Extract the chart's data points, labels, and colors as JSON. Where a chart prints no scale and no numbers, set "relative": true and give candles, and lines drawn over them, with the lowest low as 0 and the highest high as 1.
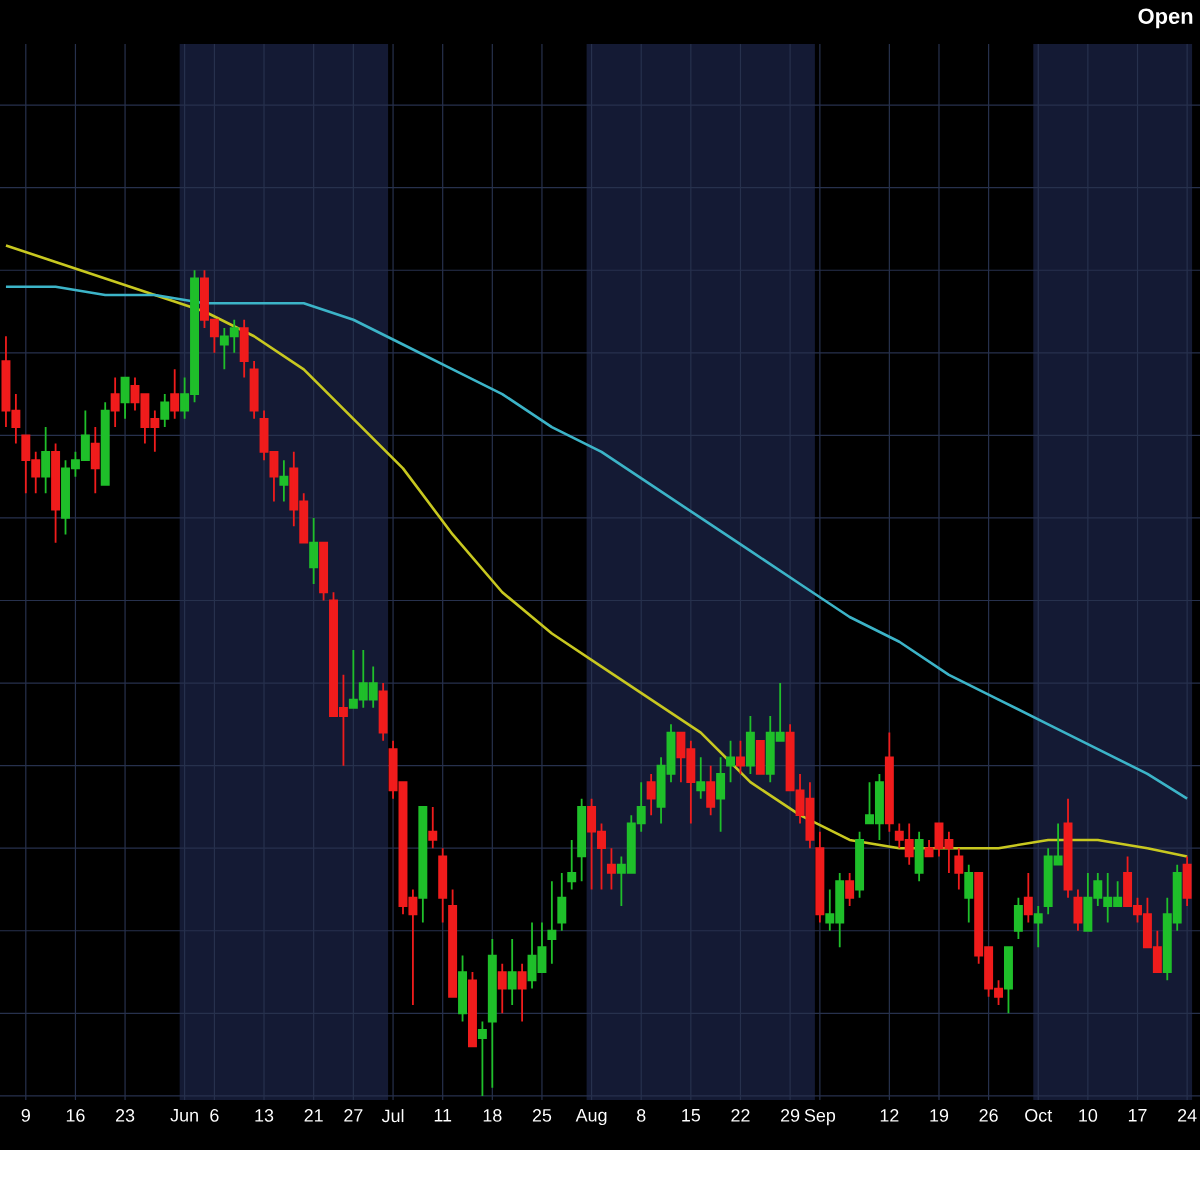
{
  "chart_data": {
    "type": "candlestick",
    "relative": true,
    "grid": true,
    "tick_labels": "x",
    "categories": [
      null,
      null,
      "9",
      null,
      null,
      null,
      null,
      "16",
      null,
      null,
      null,
      null,
      "23",
      null,
      null,
      null,
      null,
      null,
      "Jun",
      null,
      null,
      "6",
      null,
      null,
      null,
      null,
      "13",
      null,
      null,
      null,
      null,
      "21",
      null,
      null,
      null,
      "27",
      null,
      null,
      null,
      "Jul",
      null,
      null,
      null,
      null,
      "11",
      null,
      null,
      null,
      null,
      "18",
      null,
      null,
      null,
      null,
      "25",
      null,
      null,
      null,
      null,
      "Aug",
      null,
      null,
      null,
      null,
      "8",
      null,
      null,
      null,
      null,
      "15",
      null,
      null,
      null,
      null,
      "22",
      null,
      null,
      null,
      null,
      "29",
      null,
      null,
      "Sep",
      null,
      null,
      null,
      null,
      null,
      null,
      "12",
      null,
      null,
      null,
      null,
      "19",
      null,
      null,
      null,
      null,
      "26",
      null,
      null,
      null,
      null,
      "Oct",
      null,
      null,
      null,
      null,
      "10",
      null,
      null,
      null,
      null,
      "17",
      null,
      null,
      null,
      null,
      "24"
    ],
    "ohlc": [
      [
        0.89,
        0.92,
        0.81,
        0.83
      ],
      [
        0.83,
        0.85,
        0.79,
        0.81
      ],
      [
        0.8,
        0.8,
        0.73,
        0.77
      ],
      [
        0.77,
        0.78,
        0.73,
        0.75
      ],
      [
        0.75,
        0.81,
        0.73,
        0.78
      ],
      [
        0.78,
        0.79,
        0.67,
        0.71
      ],
      [
        0.7,
        0.77,
        0.68,
        0.76
      ],
      [
        0.76,
        0.78,
        0.75,
        0.77
      ],
      [
        0.77,
        0.83,
        0.77,
        0.8
      ],
      [
        0.79,
        0.81,
        0.73,
        0.76
      ],
      [
        0.74,
        0.84,
        0.74,
        0.83
      ],
      [
        0.85,
        0.87,
        0.81,
        0.83
      ],
      [
        0.84,
        0.87,
        0.82,
        0.87
      ],
      [
        0.86,
        0.87,
        0.83,
        0.84
      ],
      [
        0.85,
        0.85,
        0.79,
        0.81
      ],
      [
        0.82,
        0.83,
        0.78,
        0.81
      ],
      [
        0.82,
        0.85,
        0.81,
        0.84
      ],
      [
        0.85,
        0.88,
        0.82,
        0.83
      ],
      [
        0.83,
        0.87,
        0.82,
        0.85
      ],
      [
        0.85,
        1,
        0.84,
        0.99
      ],
      [
        0.99,
        1,
        0.93,
        0.94
      ],
      [
        0.94,
        0.94,
        0.9,
        0.92
      ],
      [
        0.91,
        0.93,
        0.88,
        0.92
      ],
      [
        0.92,
        0.94,
        0.9,
        0.93
      ],
      [
        0.93,
        0.94,
        0.87,
        0.89
      ],
      [
        0.88,
        0.89,
        0.82,
        0.83
      ],
      [
        0.82,
        0.83,
        0.77,
        0.78
      ],
      [
        0.78,
        0.78,
        0.72,
        0.75
      ],
      [
        0.74,
        0.77,
        0.72,
        0.75
      ],
      [
        0.76,
        0.78,
        0.69,
        0.71
      ],
      [
        0.72,
        0.73,
        0.67,
        0.67
      ],
      [
        0.64,
        0.7,
        0.62,
        0.67
      ],
      [
        0.67,
        0.67,
        0.6,
        0.61
      ],
      [
        0.6,
        0.61,
        0.46,
        0.46
      ],
      [
        0.47,
        0.51,
        0.4,
        0.46
      ],
      [
        0.47,
        0.54,
        0.47,
        0.48
      ],
      [
        0.48,
        0.54,
        0.47,
        0.5
      ],
      [
        0.48,
        0.52,
        0.47,
        0.5
      ],
      [
        0.49,
        0.5,
        0.43,
        0.44
      ],
      [
        0.42,
        0.43,
        0.36,
        0.37
      ],
      [
        0.38,
        0.38,
        0.22,
        0.23
      ],
      [
        0.24,
        0.25,
        0.11,
        0.22
      ],
      [
        0.24,
        0.35,
        0.21,
        0.35
      ],
      [
        0.32,
        0.35,
        0.3,
        0.31
      ],
      [
        0.29,
        0.3,
        0.21,
        0.24
      ],
      [
        0.23,
        0.25,
        0.12,
        0.12
      ],
      [
        0.1,
        0.17,
        0.09,
        0.15
      ],
      [
        0.14,
        0.15,
        0.06,
        0.06
      ],
      [
        0.07,
        0.09,
        0,
        0.08
      ],
      [
        0.09,
        0.19,
        0.01,
        0.17
      ],
      [
        0.15,
        0.16,
        0.1,
        0.13
      ],
      [
        0.13,
        0.19,
        0.11,
        0.15
      ],
      [
        0.15,
        0.16,
        0.09,
        0.13
      ],
      [
        0.14,
        0.21,
        0.13,
        0.17
      ],
      [
        0.15,
        0.21,
        0.15,
        0.18
      ],
      [
        0.19,
        0.26,
        0.16,
        0.2
      ],
      [
        0.21,
        0.27,
        0.2,
        0.24
      ],
      [
        0.26,
        0.31,
        0.25,
        0.27
      ],
      [
        0.29,
        0.36,
        0.26,
        0.35
      ],
      [
        0.35,
        0.36,
        0.25,
        0.32
      ],
      [
        0.32,
        0.33,
        0.25,
        0.3
      ],
      [
        0.28,
        0.3,
        0.25,
        0.27
      ],
      [
        0.27,
        0.29,
        0.23,
        0.28
      ],
      [
        0.27,
        0.34,
        0.27,
        0.33
      ],
      [
        0.33,
        0.38,
        0.32,
        0.35
      ],
      [
        0.38,
        0.39,
        0.34,
        0.36
      ],
      [
        0.35,
        0.41,
        0.33,
        0.4
      ],
      [
        0.39,
        0.45,
        0.38,
        0.44
      ],
      [
        0.44,
        0.44,
        0.38,
        0.41
      ],
      [
        0.42,
        0.43,
        0.33,
        0.38
      ],
      [
        0.37,
        0.41,
        0.36,
        0.38
      ],
      [
        0.38,
        0.4,
        0.34,
        0.35
      ],
      [
        0.36,
        0.41,
        0.32,
        0.39
      ],
      [
        0.4,
        0.43,
        0.38,
        0.41
      ],
      [
        0.41,
        0.43,
        0.39,
        0.4
      ],
      [
        0.4,
        0.46,
        0.39,
        0.44
      ],
      [
        0.43,
        0.43,
        0.39,
        0.39
      ],
      [
        0.39,
        0.46,
        0.38,
        0.44
      ],
      [
        0.43,
        0.5,
        0.43,
        0.44
      ],
      [
        0.44,
        0.45,
        0.37,
        0.37
      ],
      [
        0.37,
        0.39,
        0.33,
        0.34
      ],
      [
        0.36,
        0.38,
        0.3,
        0.31
      ],
      [
        0.3,
        0.32,
        0.21,
        0.22
      ],
      [
        0.21,
        0.25,
        0.2,
        0.22
      ],
      [
        0.21,
        0.27,
        0.18,
        0.26
      ],
      [
        0.26,
        0.27,
        0.23,
        0.24
      ],
      [
        0.25,
        0.32,
        0.24,
        0.31
      ],
      [
        0.33,
        0.38,
        0.33,
        0.34
      ],
      [
        0.33,
        0.39,
        0.31,
        0.38
      ],
      [
        0.41,
        0.44,
        0.32,
        0.33
      ],
      [
        0.32,
        0.33,
        0.3,
        0.31
      ],
      [
        0.31,
        0.33,
        0.28,
        0.29
      ],
      [
        0.27,
        0.32,
        0.26,
        0.31
      ],
      [
        0.3,
        0.31,
        0.29,
        0.29
      ],
      [
        0.33,
        0.33,
        0.29,
        0.3
      ],
      [
        0.31,
        0.32,
        0.27,
        0.3
      ],
      [
        0.29,
        0.3,
        0.25,
        0.27
      ],
      [
        0.24,
        0.28,
        0.21,
        0.27
      ],
      [
        0.27,
        0.27,
        0.16,
        0.17
      ],
      [
        0.18,
        0.18,
        0.12,
        0.13
      ],
      [
        0.13,
        0.14,
        0.11,
        0.12
      ],
      [
        0.13,
        0.18,
        0.1,
        0.18
      ],
      [
        0.2,
        0.24,
        0.19,
        0.23
      ],
      [
        0.24,
        0.27,
        0.21,
        0.22
      ],
      [
        0.21,
        0.23,
        0.18,
        0.22
      ],
      [
        0.23,
        0.3,
        0.22,
        0.29
      ],
      [
        0.28,
        0.33,
        0.28,
        0.29
      ],
      [
        0.33,
        0.36,
        0.24,
        0.25
      ],
      [
        0.24,
        0.25,
        0.2,
        0.21
      ],
      [
        0.2,
        0.27,
        0.2,
        0.24
      ],
      [
        0.24,
        0.27,
        0.23,
        0.26
      ],
      [
        0.23,
        0.27,
        0.21,
        0.24
      ],
      [
        0.23,
        0.26,
        0.23,
        0.24
      ],
      [
        0.27,
        0.29,
        0.23,
        0.23
      ],
      [
        0.23,
        0.24,
        0.21,
        0.22
      ],
      [
        0.22,
        0.24,
        0.18,
        0.18
      ],
      [
        0.18,
        0.2,
        0.15,
        0.15
      ],
      [
        0.15,
        0.24,
        0.14,
        0.22
      ],
      [
        0.21,
        0.28,
        0.2,
        0.27
      ],
      [
        0.28,
        0.29,
        0.23,
        0.24
      ]
    ],
    "colors": [
      "#f01c1c",
      "#f01c1c",
      "#f01c1c",
      "#f01c1c",
      "#1fbf2a",
      "#f01c1c",
      "#1fbf2a",
      "#1fbf2a",
      "#1fbf2a",
      "#f01c1c",
      "#1fbf2a",
      "#f01c1c",
      "#1fbf2a",
      "#f01c1c",
      "#f01c1c",
      "#f01c1c",
      "#1fbf2a",
      "#f01c1c",
      "#1fbf2a",
      "#1fbf2a",
      "#f01c1c",
      "#f01c1c",
      "#1fbf2a",
      "#1fbf2a",
      "#f01c1c",
      "#f01c1c",
      "#f01c1c",
      "#f01c1c",
      "#1fbf2a",
      "#f01c1c",
      "#f01c1c",
      "#1fbf2a",
      "#f01c1c",
      "#f01c1c",
      "#f01c1c",
      "#1fbf2a",
      "#1fbf2a",
      "#1fbf2a",
      "#f01c1c",
      "#f01c1c",
      "#f01c1c",
      "#f01c1c",
      "#1fbf2a",
      "#f01c1c",
      "#f01c1c",
      "#f01c1c",
      "#1fbf2a",
      "#f01c1c",
      "#1fbf2a",
      "#1fbf2a",
      "#f01c1c",
      "#1fbf2a",
      "#f01c1c",
      "#1fbf2a",
      "#1fbf2a",
      "#1fbf2a",
      "#1fbf2a",
      "#1fbf2a",
      "#1fbf2a",
      "#f01c1c",
      "#f01c1c",
      "#f01c1c",
      "#1fbf2a",
      "#1fbf2a",
      "#1fbf2a",
      "#f01c1c",
      "#1fbf2a",
      "#1fbf2a",
      "#f01c1c",
      "#f01c1c",
      "#1fbf2a",
      "#f01c1c",
      "#1fbf2a",
      "#1fbf2a",
      "#f01c1c",
      "#1fbf2a",
      "#f01c1c",
      "#1fbf2a",
      "#1fbf2a",
      "#f01c1c",
      "#f01c1c",
      "#f01c1c",
      "#f01c1c",
      "#1fbf2a",
      "#1fbf2a",
      "#f01c1c",
      "#1fbf2a",
      "#1fbf2a",
      "#1fbf2a",
      "#f01c1c",
      "#f01c1c",
      "#f01c1c",
      "#1fbf2a",
      "#f01c1c",
      "#f01c1c",
      "#f01c1c",
      "#f01c1c",
      "#1fbf2a",
      "#f01c1c",
      "#f01c1c",
      "#f01c1c",
      "#1fbf2a",
      "#1fbf2a",
      "#f01c1c",
      "#1fbf2a",
      "#1fbf2a",
      "#1fbf2a",
      "#f01c1c",
      "#f01c1c",
      "#1fbf2a",
      "#1fbf2a",
      "#1fbf2a",
      "#1fbf2a",
      "#f01c1c",
      "#f01c1c",
      "#f01c1c",
      "#f01c1c",
      "#1fbf2a",
      "#1fbf2a",
      "#f01c1c"
    ],
    "series": [
      {
        "type": "line",
        "color": "#c8c820",
        "values": [
          1.03,
          null,
          null,
          null,
          null,
          1.01,
          null,
          null,
          null,
          null,
          0.99,
          null,
          null,
          null,
          null,
          0.97,
          null,
          null,
          null,
          null,
          0.95,
          null,
          null,
          null,
          null,
          0.92,
          null,
          null,
          null,
          null,
          0.88,
          null,
          null,
          null,
          null,
          0.82,
          null,
          null,
          null,
          null,
          0.76,
          null,
          null,
          null,
          null,
          0.68,
          null,
          null,
          null,
          null,
          0.61,
          null,
          null,
          null,
          null,
          0.56,
          null,
          null,
          null,
          null,
          0.52,
          null,
          null,
          null,
          null,
          0.48,
          null,
          null,
          null,
          null,
          0.44,
          null,
          null,
          null,
          null,
          0.38,
          null,
          null,
          null,
          null,
          0.34,
          null,
          null,
          null,
          null,
          0.31,
          null,
          null,
          null,
          null,
          0.3,
          null,
          null,
          null,
          null,
          0.3,
          null,
          null,
          null,
          null,
          0.3,
          null,
          null,
          null,
          null,
          0.31,
          null,
          null,
          null,
          null,
          0.31,
          null,
          null,
          null,
          null,
          0.3,
          null,
          null,
          null,
          0.29
        ]
      },
      {
        "type": "line",
        "color": "#3cb4c8",
        "values": [
          0.98,
          null,
          null,
          null,
          null,
          0.98,
          null,
          null,
          null,
          null,
          0.97,
          null,
          null,
          null,
          null,
          0.97,
          null,
          null,
          null,
          null,
          0.96,
          null,
          null,
          null,
          null,
          0.96,
          null,
          null,
          null,
          null,
          0.96,
          null,
          null,
          null,
          null,
          0.94,
          null,
          null,
          null,
          null,
          0.91,
          null,
          null,
          null,
          null,
          0.88,
          null,
          null,
          null,
          null,
          0.85,
          null,
          null,
          null,
          null,
          0.81,
          null,
          null,
          null,
          null,
          0.78,
          null,
          null,
          null,
          null,
          0.74,
          null,
          null,
          null,
          null,
          0.7,
          null,
          null,
          null,
          null,
          0.66,
          null,
          null,
          null,
          null,
          0.62,
          null,
          null,
          null,
          null,
          0.58,
          null,
          null,
          null,
          null,
          0.55,
          null,
          null,
          null,
          null,
          0.51,
          null,
          null,
          null,
          null,
          0.48,
          null,
          null,
          null,
          null,
          0.45,
          null,
          null,
          null,
          null,
          0.42,
          null,
          null,
          null,
          null,
          0.39,
          null,
          null,
          null,
          0.36
        ]
      }
    ],
    "bands": [
      {
        "axis": "x",
        "from": "Jun",
        "to": "Jul",
        "color": "#141a34"
      },
      {
        "axis": "x",
        "from": "Aug",
        "to": "Sep",
        "color": "#141a34"
      },
      {
        "axis": "x",
        "from": "Oct",
        "to": "24",
        "color": "#141a34"
      }
    ],
    "annotations": [
      "Open"
    ]
  }
}
